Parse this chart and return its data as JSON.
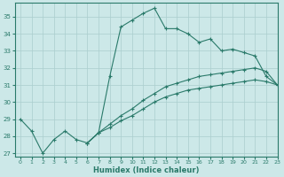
{
  "xlabel": "Humidex (Indice chaleur)",
  "background_color": "#cce8e8",
  "grid_color": "#aacece",
  "line_color": "#2a7a6a",
  "xlim": [
    -0.5,
    23
  ],
  "ylim": [
    26.8,
    35.8
  ],
  "yticks": [
    27,
    28,
    29,
    30,
    31,
    32,
    33,
    34,
    35
  ],
  "xticks": [
    0,
    1,
    2,
    3,
    4,
    5,
    6,
    7,
    8,
    9,
    10,
    11,
    12,
    13,
    14,
    15,
    16,
    17,
    18,
    19,
    20,
    21,
    22,
    23
  ],
  "line1_x": [
    0,
    1,
    2,
    3,
    4,
    5,
    6,
    7,
    8,
    9,
    10,
    11,
    12,
    13,
    14,
    15,
    16,
    17,
    18,
    19,
    20,
    21,
    22,
    23
  ],
  "line1_y": [
    29.0,
    28.3,
    27.0,
    27.8,
    28.3,
    27.8,
    27.6,
    28.2,
    31.5,
    34.4,
    34.8,
    35.2,
    35.5,
    34.3,
    34.3,
    34.0,
    33.5,
    33.7,
    33.0,
    33.1,
    32.9,
    32.7,
    31.5,
    31.0
  ],
  "line2_x": [
    6,
    7,
    8,
    9,
    10,
    11,
    12,
    13,
    14,
    15,
    16,
    17,
    18,
    19,
    20,
    21,
    22,
    23
  ],
  "line2_y": [
    27.6,
    28.2,
    28.5,
    28.9,
    29.2,
    29.6,
    30.0,
    30.3,
    30.5,
    30.7,
    30.8,
    30.9,
    31.0,
    31.1,
    31.2,
    31.3,
    31.2,
    31.0
  ],
  "line3_x": [
    6,
    7,
    8,
    9,
    10,
    11,
    12,
    13,
    14,
    15,
    16,
    17,
    18,
    19,
    20,
    21,
    22,
    23
  ],
  "line3_y": [
    27.6,
    28.2,
    28.7,
    29.2,
    29.6,
    30.1,
    30.5,
    30.9,
    31.1,
    31.3,
    31.5,
    31.6,
    31.7,
    31.8,
    31.9,
    32.0,
    31.8,
    31.0
  ]
}
